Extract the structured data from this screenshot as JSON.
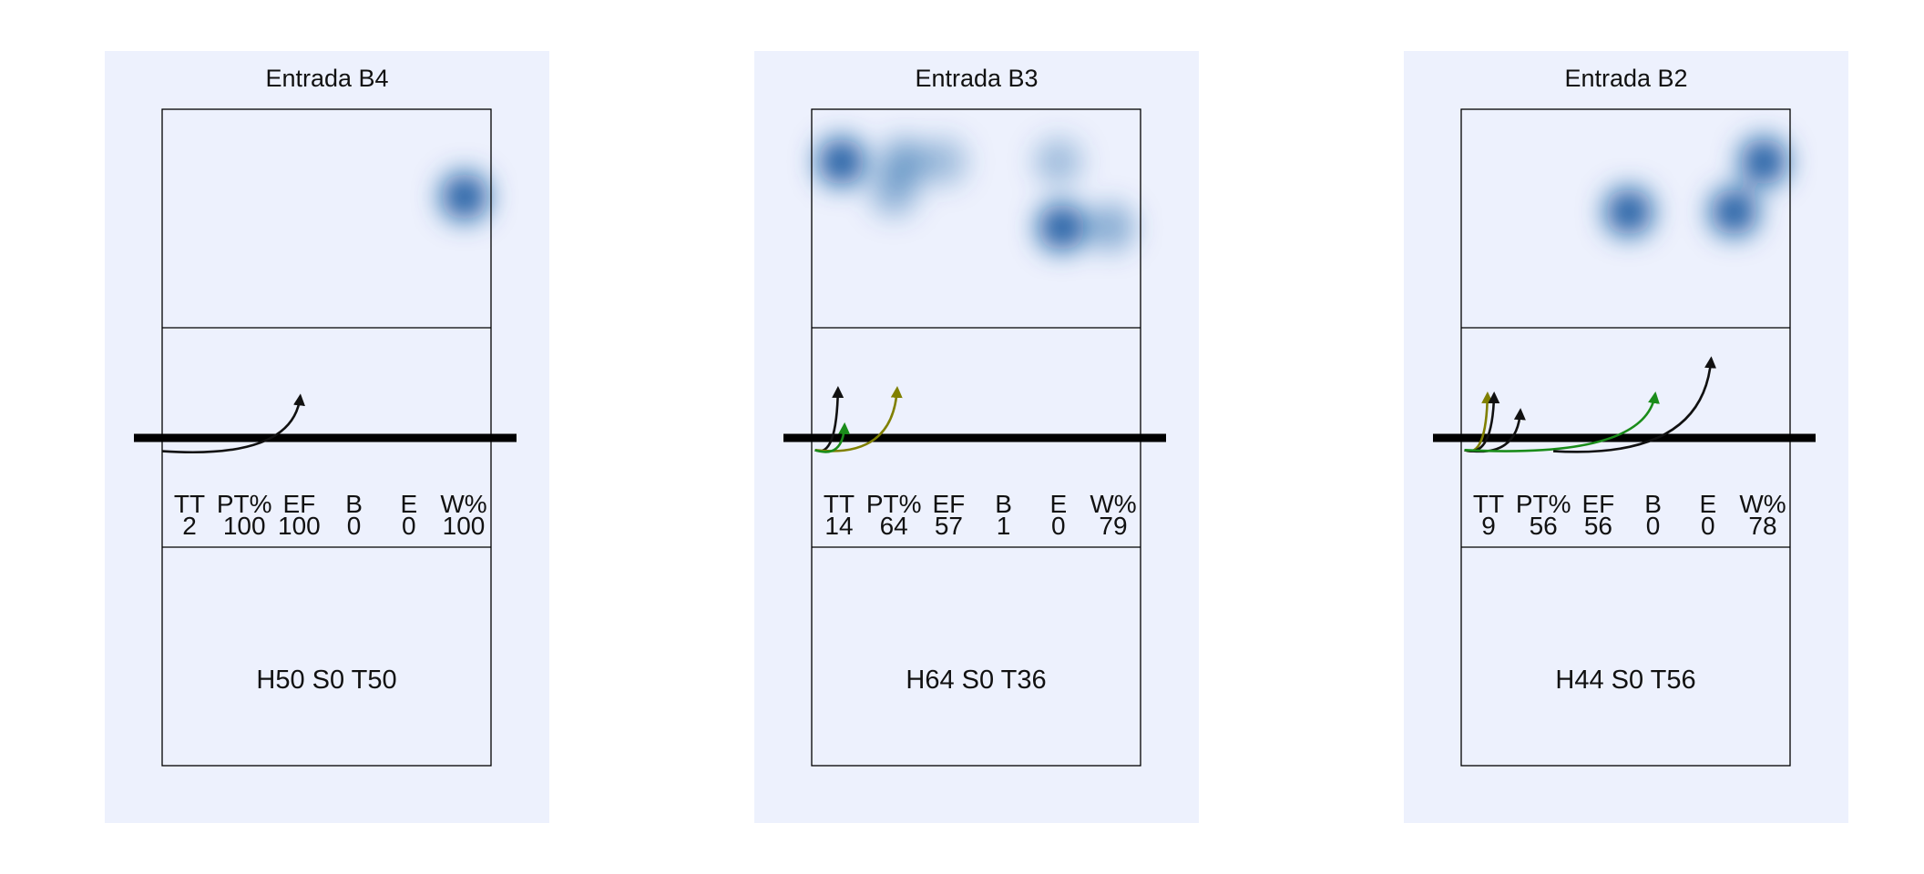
{
  "chart_data": {
    "type": "heatmap",
    "panels": [
      {
        "title": "Entrada B4",
        "stats": {
          "headers": [
            "TT",
            "PT%",
            "EF",
            "B",
            "E",
            "W%"
          ],
          "values": [
            "2",
            "100",
            "100",
            "0",
            "0",
            "100"
          ]
        },
        "bottom_label": "H50 S0 T50",
        "heat_spots": [
          {
            "x": 0.92,
            "y": 0.4,
            "intensity": 1.0
          }
        ],
        "arrows": [
          {
            "color": "#111111",
            "from": [
              0.0,
              -0.12
            ],
            "to": [
              0.42,
              0.38
            ]
          }
        ]
      },
      {
        "title": "Entrada B3",
        "stats": {
          "headers": [
            "TT",
            "PT%",
            "EF",
            "B",
            "E",
            "W%"
          ],
          "values": [
            "14",
            "64",
            "57",
            "1",
            "0",
            "79"
          ]
        },
        "bottom_label": "H64 S0 T36",
        "heat_spots": [
          {
            "x": 0.09,
            "y": 0.24,
            "intensity": 1.0
          },
          {
            "x": 0.28,
            "y": 0.24,
            "intensity": 0.5
          },
          {
            "x": 0.4,
            "y": 0.24,
            "intensity": 0.35
          },
          {
            "x": 0.25,
            "y": 0.38,
            "intensity": 0.4
          },
          {
            "x": 0.75,
            "y": 0.24,
            "intensity": 0.35
          },
          {
            "x": 0.76,
            "y": 0.54,
            "intensity": 1.0
          },
          {
            "x": 0.91,
            "y": 0.54,
            "intensity": 0.45
          }
        ],
        "arrows": [
          {
            "color": "#111111",
            "from": [
              0.01,
              -0.11
            ],
            "to": [
              0.08,
              0.45
            ]
          },
          {
            "color": "#808000",
            "from": [
              0.01,
              -0.11
            ],
            "to": [
              0.26,
              0.45
            ]
          },
          {
            "color": "#1a8c1a",
            "from": [
              0.01,
              -0.11
            ],
            "to": [
              0.1,
              0.12
            ]
          }
        ]
      },
      {
        "title": "Entrada B2",
        "stats": {
          "headers": [
            "TT",
            "PT%",
            "EF",
            "B",
            "E",
            "W%"
          ],
          "values": [
            "9",
            "56",
            "56",
            "0",
            "0",
            "78"
          ]
        },
        "bottom_label": "H44 S0 T56",
        "heat_spots": [
          {
            "x": 0.92,
            "y": 0.24,
            "intensity": 1.0
          },
          {
            "x": 0.51,
            "y": 0.47,
            "intensity": 1.0
          },
          {
            "x": 0.83,
            "y": 0.47,
            "intensity": 1.0
          }
        ],
        "arrows": [
          {
            "color": "#808000",
            "from": [
              0.01,
              -0.11
            ],
            "to": [
              0.08,
              0.4
            ]
          },
          {
            "color": "#111111",
            "from": [
              0.01,
              -0.11
            ],
            "to": [
              0.1,
              0.4
            ]
          },
          {
            "color": "#111111",
            "from": [
              0.01,
              -0.11
            ],
            "to": [
              0.18,
              0.25
            ]
          },
          {
            "color": "#1a8c1a",
            "from": [
              0.01,
              -0.11
            ],
            "to": [
              0.59,
              0.4
            ]
          },
          {
            "color": "#111111",
            "from": [
              0.28,
              -0.12
            ],
            "to": [
              0.76,
              0.72
            ]
          }
        ]
      }
    ]
  },
  "colors": {
    "panel_background": "#edf1fd",
    "court_line": "#000000",
    "net": "#000000",
    "heat": "#08519c",
    "arrow_black": "#111111",
    "arrow_olive": "#808000",
    "arrow_green": "#1a8c1a"
  }
}
